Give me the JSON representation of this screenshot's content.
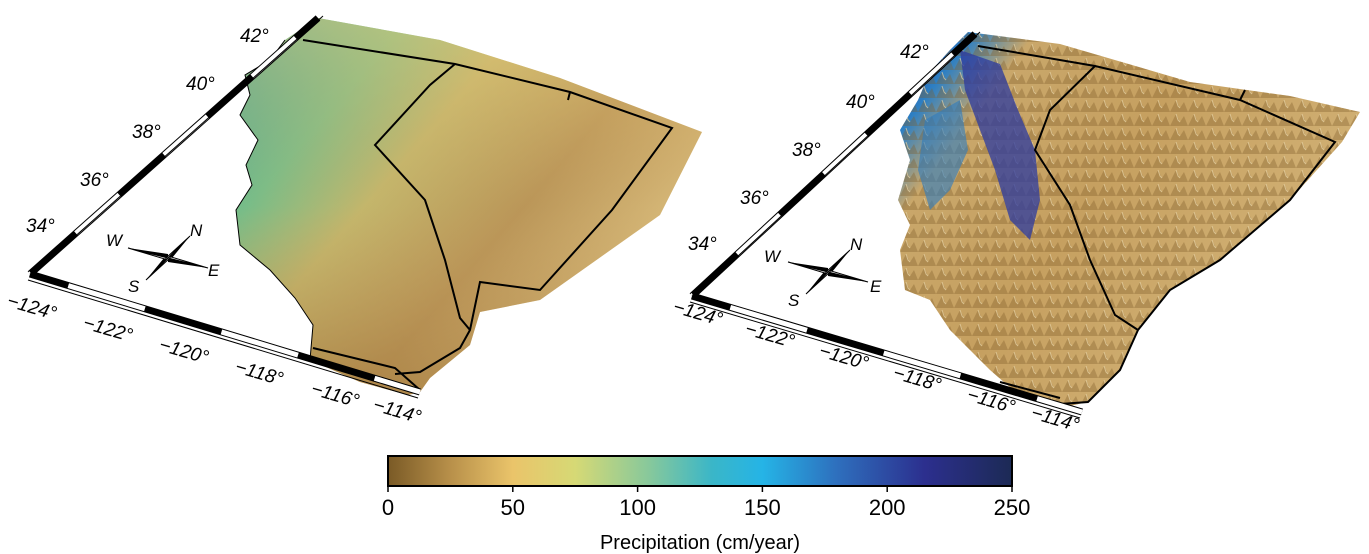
{
  "maps": [
    {
      "id": "flat",
      "description_visible": "precipitation draped on flat surface",
      "lat_labels": [
        "34°",
        "36°",
        "38°",
        "40°",
        "42°"
      ],
      "lon_labels": [
        "−124°",
        "−122°",
        "−120°",
        "−118°",
        "−116°",
        "−114°"
      ],
      "compass": {
        "n": "N",
        "s": "S",
        "e": "E",
        "w": "W"
      }
    },
    {
      "id": "relief",
      "description_visible": "precipitation draped on topographic relief",
      "lat_labels": [
        "34°",
        "36°",
        "38°",
        "40°",
        "42°"
      ],
      "lon_labels": [
        "−124°",
        "−122°",
        "−120°",
        "−118°",
        "−116°",
        "−114°"
      ],
      "compass": {
        "n": "N",
        "s": "S",
        "e": "E",
        "w": "W"
      }
    }
  ],
  "colorbar": {
    "title": "Precipitation (cm/year)",
    "ticks": [
      "0",
      "50",
      "100",
      "150",
      "200",
      "250"
    ],
    "range": [
      0,
      250
    ],
    "colors": [
      "#7a5a26",
      "#b8904a",
      "#eac46a",
      "#d6d975",
      "#86c89c",
      "#3ab6c8",
      "#25b4e6",
      "#2e6fbd",
      "#2c2f8e",
      "#1c2a55"
    ]
  },
  "palette": {
    "frame_black": "#000000",
    "land_dry": "#c9a164",
    "land_wet": "#2ea59b",
    "relief_blue": "#2a3a9c"
  }
}
